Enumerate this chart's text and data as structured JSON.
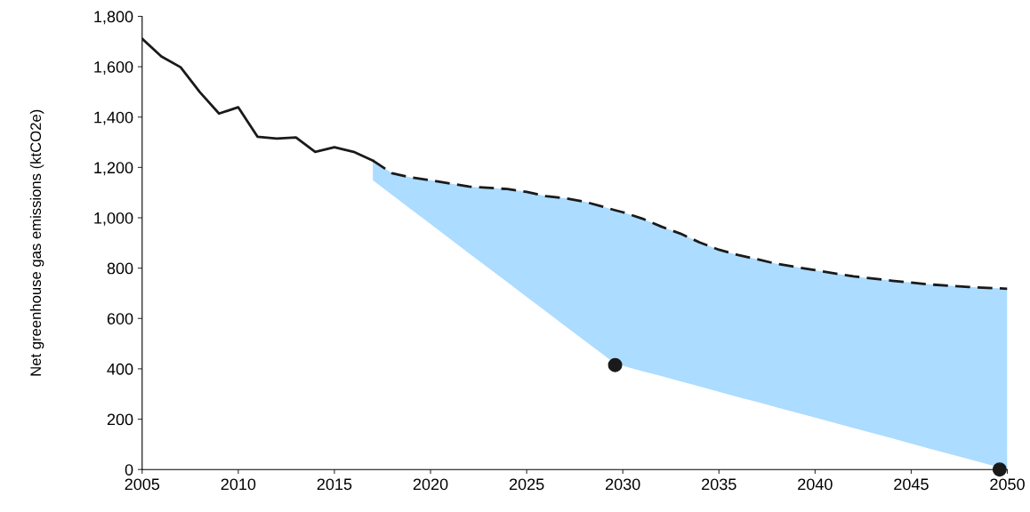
{
  "chart_data": {
    "type": "line",
    "ylabel": "Net greenhouse gas emissions (ktCO2e)",
    "xlim": [
      2005,
      2050
    ],
    "xticks": [
      2005,
      2010,
      2015,
      2020,
      2025,
      2030,
      2035,
      2040,
      2045,
      2050
    ],
    "ylim": [
      0,
      1800
    ],
    "yticks": [
      0,
      200,
      400,
      600,
      800,
      {
        "value": 1000,
        "label": "1,000"
      },
      {
        "value": 1200,
        "label": "1,200"
      },
      {
        "value": 1400,
        "label": "1,400"
      },
      {
        "value": 1600,
        "label": "1,600"
      },
      {
        "value": 1800,
        "label": "1,800"
      }
    ],
    "grid": false,
    "legend": false,
    "series": [
      {
        "color": "#1a1a1a",
        "line_style": "solid",
        "x": [
          2005,
          2006,
          2007,
          2008,
          2009,
          2010,
          2011,
          2012,
          2013,
          2014,
          2015,
          2016,
          2017
        ],
        "values": [
          1711,
          1641,
          1598,
          1499,
          1414,
          1439,
          1322,
          1315,
          1319,
          1262,
          1280,
          1262,
          1227
        ]
      },
      {
        "color": "#1a1a1a",
        "line_style": "dashed",
        "x": [
          2017,
          2018,
          2019,
          2020,
          2022,
          2024,
          2025,
          2026,
          2027,
          2028,
          2029,
          2029.6,
          2030,
          2031,
          2032,
          2033,
          2034,
          2035,
          2036,
          2037,
          2038,
          2040,
          2042,
          2044,
          2046,
          2048,
          2050
        ],
        "values": [
          1227,
          1177,
          1160,
          1149,
          1124,
          1114,
          1103,
          1086,
          1078,
          1064,
          1043,
          1030,
          1022,
          997,
          965,
          937,
          902,
          873,
          852,
          835,
          817,
          792,
          767,
          750,
          735,
          725,
          718
        ],
        "lower": [
          1149,
          1091,
          1033,
          975,
          859,
          744,
          686,
          628,
          570,
          513,
          455,
          420,
          412,
          391,
          371,
          350,
          330,
          309,
          288,
          268,
          247,
          206,
          165,
          124,
          82,
          41,
          0
        ],
        "upper": [
          1227,
          1177,
          1160,
          1149,
          1124,
          1114,
          1103,
          1086,
          1078,
          1064,
          1043,
          1030,
          1022,
          997,
          965,
          937,
          902,
          873,
          852,
          835,
          817,
          792,
          767,
          750,
          735,
          725,
          718
        ]
      },
      {
        "type": "scatter",
        "color": "#1a1a1a",
        "marker": "circle",
        "x": [
          2029.6,
          2049.6
        ],
        "values": [
          415,
          0
        ]
      }
    ]
  }
}
